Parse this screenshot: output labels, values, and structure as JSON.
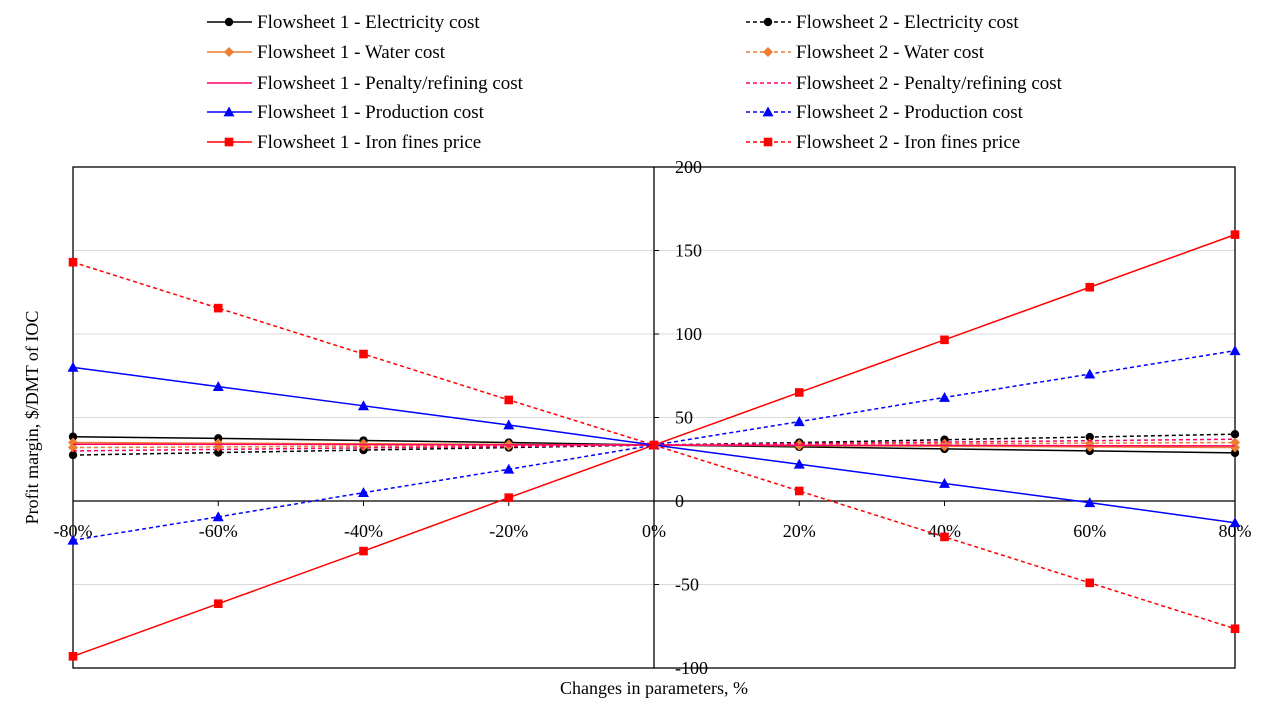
{
  "chart_data": {
    "type": "line",
    "title": "",
    "xlabel": "Changes in parameters, %",
    "ylabel": "Profit margin, $/DMT of IOC",
    "x": [
      -80,
      -60,
      -40,
      -20,
      0,
      20,
      40,
      60,
      80
    ],
    "x_tick_labels": [
      "-80%",
      "-60%",
      "-40%",
      "-20%",
      "0%",
      "20%",
      "40%",
      "60%",
      "80%"
    ],
    "ylim": [
      -100,
      200
    ],
    "xlim": [
      -80,
      80
    ],
    "y_ticks": [
      -100,
      -50,
      0,
      50,
      100,
      150,
      200
    ],
    "y_tick_labels": [
      "-100",
      "-50",
      "0",
      "50",
      "100",
      "150",
      "200"
    ],
    "grid": "horizontal",
    "legend_position": "top",
    "series": [
      {
        "name": "Flowsheet 1 - Electricity cost",
        "color": "#000000",
        "dash": "solid",
        "marker": "circle",
        "values": [
          38.5,
          37.5,
          36.2,
          35.0,
          33.5,
          32.4,
          31.2,
          30.0,
          28.8
        ]
      },
      {
        "name": "Flowsheet 2 - Electricity cost",
        "color": "#000000",
        "dash": "dashed",
        "marker": "circle",
        "values": [
          27.5,
          29.0,
          30.5,
          32.0,
          33.5,
          35.0,
          36.7,
          38.3,
          40.0
        ]
      },
      {
        "name": "Flowsheet 1 - Water cost",
        "color": "#ED7D31",
        "dash": "solid",
        "marker": "diamond",
        "values": [
          35.0,
          34.6,
          34.3,
          33.9,
          33.5,
          33.1,
          32.8,
          32.4,
          32.0
        ]
      },
      {
        "name": "Flowsheet 2 - Water cost",
        "color": "#ED7D31",
        "dash": "dashed",
        "marker": "diamond",
        "values": [
          32.0,
          32.4,
          32.8,
          33.1,
          33.5,
          33.9,
          34.3,
          34.6,
          35.0
        ]
      },
      {
        "name": "Flowsheet 1 - Penalty/refining cost",
        "color": "#FF0066",
        "dash": "solid",
        "marker": "none",
        "values": [
          34.0,
          33.9,
          33.8,
          33.6,
          33.5,
          33.4,
          33.3,
          33.1,
          33.0
        ]
      },
      {
        "name": "Flowsheet 2 - Penalty/refining cost",
        "color": "#FF0066",
        "dash": "dashed",
        "marker": "none",
        "values": [
          30.0,
          30.9,
          31.8,
          32.6,
          33.5,
          34.4,
          35.3,
          36.1,
          37.0
        ]
      },
      {
        "name": "Flowsheet 1 - Production cost",
        "color": "#0000FF",
        "dash": "solid",
        "marker": "triangle",
        "values": [
          80.0,
          68.5,
          57.0,
          45.5,
          33.5,
          22.0,
          10.5,
          -1.0,
          -13.0
        ]
      },
      {
        "name": "Flowsheet 2 - Production cost",
        "color": "#0000FF",
        "dash": "dashed",
        "marker": "triangle",
        "values": [
          -23.5,
          -9.5,
          5.0,
          19.0,
          33.5,
          47.5,
          62.0,
          76.0,
          90.0
        ]
      },
      {
        "name": "Flowsheet 1 - Iron fines price",
        "color": "#FF0000",
        "dash": "solid",
        "marker": "square",
        "values": [
          -93.0,
          -61.5,
          -30.0,
          2.0,
          33.5,
          65.0,
          96.5,
          128.0,
          159.5
        ]
      },
      {
        "name": "Flowsheet 2 - Iron fines price",
        "color": "#FF0000",
        "dash": "dashed",
        "marker": "square",
        "values": [
          143.0,
          115.5,
          88.0,
          60.5,
          33.5,
          6.0,
          -21.5,
          -49.0,
          -76.5
        ]
      }
    ]
  }
}
